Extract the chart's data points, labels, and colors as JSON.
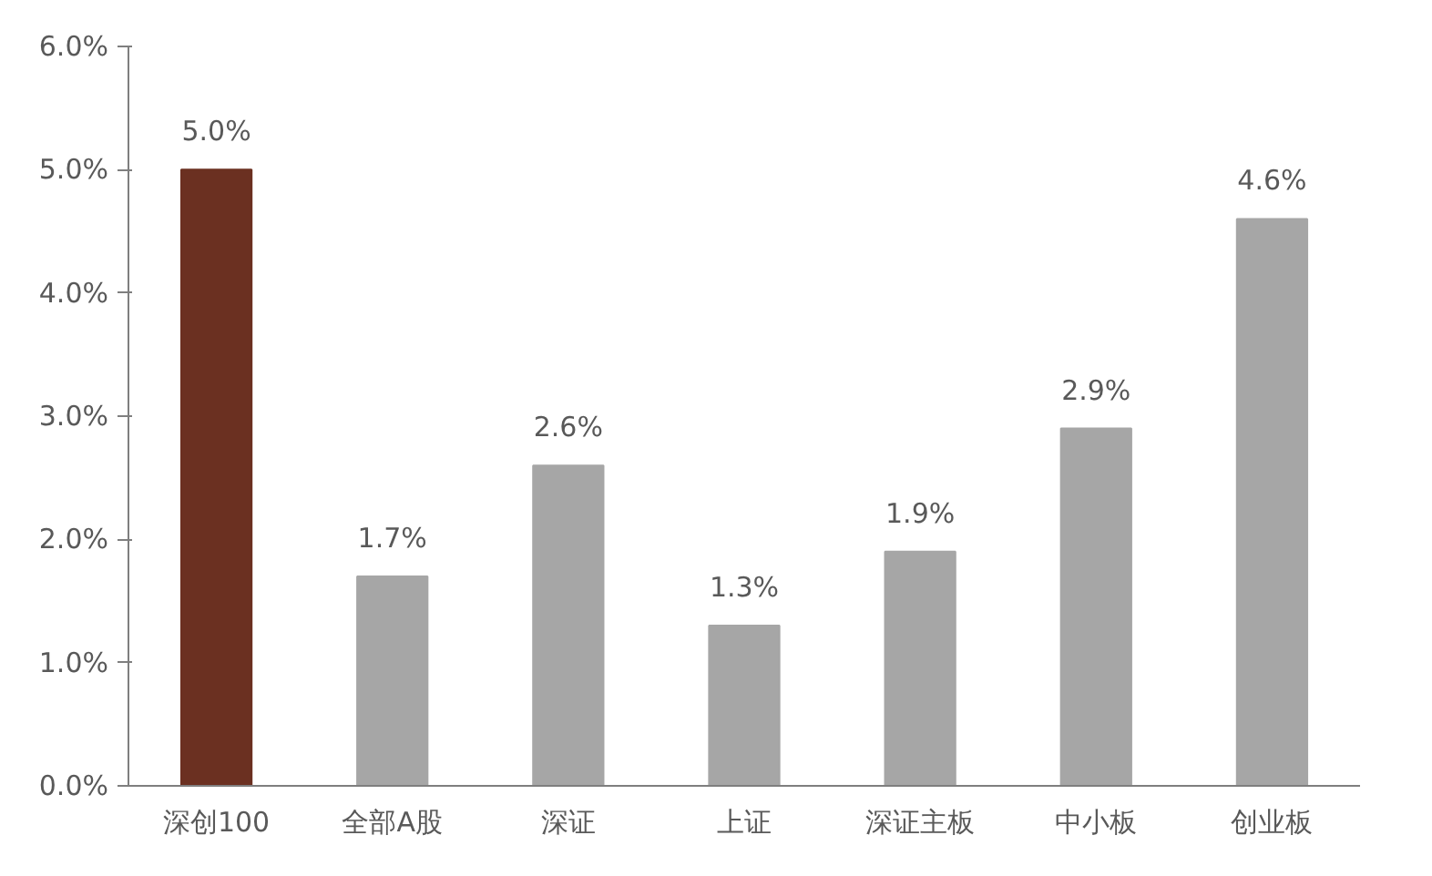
{
  "chart_data": {
    "type": "bar",
    "categories": [
      "深创100",
      "全部A股",
      "深证",
      "上证",
      "深证主板",
      "中小板",
      "创业板"
    ],
    "values": [
      5.0,
      1.7,
      2.6,
      1.3,
      1.9,
      2.9,
      4.6
    ],
    "colors": [
      "#6b3021",
      "#a6a6a6",
      "#a6a6a6",
      "#a6a6a6",
      "#a6a6a6",
      "#a6a6a6",
      "#a6a6a6"
    ],
    "value_labels": [
      "5.0%",
      "1.7%",
      "2.6%",
      "1.3%",
      "1.9%",
      "2.9%",
      "4.6%"
    ],
    "ylim": [
      0,
      6
    ],
    "yticks": [
      {
        "value": 0,
        "label": "0.0%"
      },
      {
        "value": 1,
        "label": "1.0%"
      },
      {
        "value": 2,
        "label": "2.0%"
      },
      {
        "value": 3,
        "label": "3.0%"
      },
      {
        "value": 4,
        "label": "4.0%"
      },
      {
        "value": 5,
        "label": "5.0%"
      },
      {
        "value": 6,
        "label": "6.0%"
      }
    ],
    "grid": false
  }
}
